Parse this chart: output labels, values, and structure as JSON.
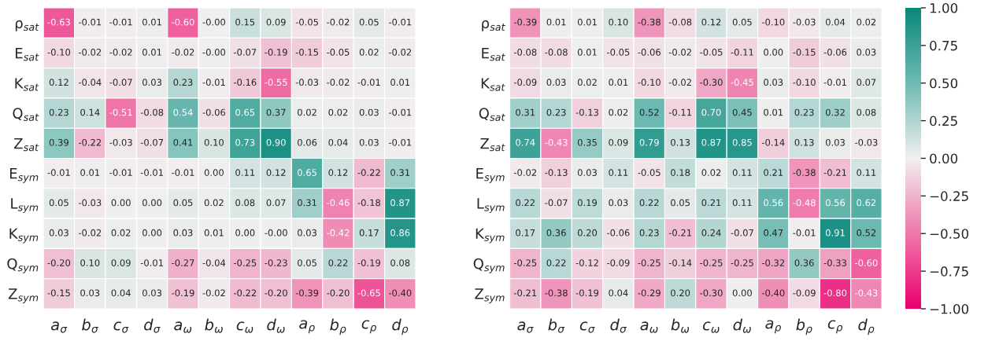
{
  "chart_data": [
    {
      "type": "heatmap",
      "categories": [
        "a$_{σ}$",
        "b$_{σ}$",
        "c$_{σ}$",
        "d$_{σ}$",
        "a$_{ω}$",
        "b$_{ω}$",
        "c$_{ω}$",
        "d$_{ω}$",
        "a$_{ρ}$",
        "b$_{ρ}$",
        "c$_{ρ}$",
        "d$_{ρ}$"
      ],
      "y_categories": [
        "ρ$_{sat}$",
        "E$_{sat}$",
        "K$_{sat}$",
        "Q$_{sat}$",
        "Z$_{sat}$",
        "E$_{sym}$",
        "L$_{sym}$",
        "K$_{sym}$",
        "Q$_{sym}$",
        "Z$_{sym}$"
      ],
      "cells": [
        [
          -0.63,
          -0.01,
          -0.01,
          0.01,
          -0.6,
          -0.0,
          0.15,
          0.09,
          -0.05,
          -0.02,
          0.05,
          -0.01
        ],
        [
          -0.1,
          -0.02,
          -0.02,
          0.01,
          -0.02,
          -0.0,
          -0.07,
          -0.19,
          -0.15,
          -0.05,
          0.02,
          -0.02
        ],
        [
          0.12,
          -0.04,
          -0.07,
          0.03,
          0.23,
          -0.01,
          -0.16,
          -0.55,
          -0.03,
          -0.02,
          -0.01,
          0.01
        ],
        [
          0.23,
          0.14,
          -0.51,
          -0.08,
          0.54,
          -0.06,
          0.65,
          0.37,
          0.02,
          0.02,
          0.03,
          -0.01
        ],
        [
          0.39,
          -0.22,
          -0.03,
          -0.07,
          0.41,
          0.1,
          0.73,
          0.9,
          0.06,
          0.04,
          0.03,
          -0.01
        ],
        [
          -0.01,
          0.01,
          -0.01,
          -0.01,
          -0.01,
          0.0,
          0.11,
          0.12,
          0.65,
          0.12,
          -0.22,
          0.31
        ],
        [
          0.05,
          -0.03,
          0.0,
          0.0,
          0.05,
          0.02,
          0.08,
          0.07,
          0.31,
          -0.46,
          -0.18,
          0.87
        ],
        [
          0.03,
          -0.02,
          0.02,
          0.0,
          0.03,
          0.01,
          0.0,
          -0.0,
          0.03,
          -0.42,
          0.17,
          0.86
        ],
        [
          -0.2,
          0.1,
          0.09,
          -0.01,
          -0.27,
          -0.04,
          -0.25,
          -0.23,
          0.05,
          0.22,
          -0.19,
          0.08
        ],
        [
          -0.15,
          0.03,
          0.04,
          0.03,
          -0.19,
          -0.02,
          -0.22,
          -0.2,
          -0.39,
          -0.2,
          -0.65,
          -0.4
        ]
      ],
      "cell_labels": [
        [
          "-0.63",
          "-0.01",
          "-0.01",
          "0.01",
          "-0.60",
          "-0.00",
          "0.15",
          "0.09",
          "-0.05",
          "-0.02",
          "0.05",
          "-0.01"
        ],
        [
          "-0.10",
          "-0.02",
          "-0.02",
          "0.01",
          "-0.02",
          "-0.00",
          "-0.07",
          "-0.19",
          "-0.15",
          "-0.05",
          "0.02",
          "-0.02"
        ],
        [
          "0.12",
          "-0.04",
          "-0.07",
          "0.03",
          "0.23",
          "-0.01",
          "-0.16",
          "-0.55",
          "-0.03",
          "-0.02",
          "-0.01",
          "0.01"
        ],
        [
          "0.23",
          "0.14",
          "-0.51",
          "-0.08",
          "0.54",
          "-0.06",
          "0.65",
          "0.37",
          "0.02",
          "0.02",
          "0.03",
          "-0.01"
        ],
        [
          "0.39",
          "-0.22",
          "-0.03",
          "-0.07",
          "0.41",
          "0.10",
          "0.73",
          "0.90",
          "0.06",
          "0.04",
          "0.03",
          "-0.01"
        ],
        [
          "-0.01",
          "0.01",
          "-0.01",
          "-0.01",
          "-0.01",
          "0.00",
          "0.11",
          "0.12",
          "0.65",
          "0.12",
          "-0.22",
          "0.31"
        ],
        [
          "0.05",
          "-0.03",
          "0.00",
          "0.00",
          "0.05",
          "0.02",
          "0.08",
          "0.07",
          "0.31",
          "-0.46",
          "-0.18",
          "0.87"
        ],
        [
          "0.03",
          "-0.02",
          "0.02",
          "0.00",
          "0.03",
          "0.01",
          "0.00",
          "-0.00",
          "0.03",
          "-0.42",
          "0.17",
          "0.86"
        ],
        [
          "-0.20",
          "0.10",
          "0.09",
          "-0.01",
          "-0.27",
          "-0.04",
          "-0.25",
          "-0.23",
          "0.05",
          "0.22",
          "-0.19",
          "0.08"
        ],
        [
          "-0.15",
          "0.03",
          "0.04",
          "0.03",
          "-0.19",
          "-0.02",
          "-0.22",
          "-0.20",
          "-0.39",
          "-0.20",
          "-0.65",
          "-0.40"
        ]
      ]
    },
    {
      "type": "heatmap",
      "categories": [
        "a$_{σ}$",
        "b$_{σ}$",
        "c$_{σ}$",
        "d$_{σ}$",
        "a$_{ω}$",
        "b$_{ω}$",
        "c$_{ω}$",
        "d$_{ω}$",
        "a$_{ρ}$",
        "b$_{ρ}$",
        "c$_{ρ}$",
        "d$_{ρ}$"
      ],
      "y_categories": [
        "ρ$_{sat}$",
        "E$_{sat}$",
        "K$_{sat}$",
        "Q$_{sat}$",
        "Z$_{sat}$",
        "E$_{sym}$",
        "L$_{sym}$",
        "K$_{sym}$",
        "Q$_{sym}$",
        "Z$_{sym}$"
      ],
      "cells": [
        [
          -0.39,
          0.01,
          0.01,
          0.1,
          -0.38,
          -0.08,
          0.12,
          0.05,
          -0.1,
          -0.03,
          0.04,
          0.02
        ],
        [
          -0.08,
          -0.08,
          0.01,
          -0.05,
          -0.06,
          -0.02,
          -0.05,
          -0.11,
          0.0,
          -0.15,
          -0.06,
          0.03
        ],
        [
          -0.09,
          0.03,
          0.02,
          0.01,
          -0.1,
          -0.02,
          -0.3,
          -0.45,
          0.03,
          -0.1,
          -0.01,
          0.07
        ],
        [
          0.31,
          0.23,
          -0.13,
          0.02,
          0.52,
          -0.11,
          0.7,
          0.45,
          0.01,
          0.23,
          0.32,
          0.08
        ],
        [
          0.74,
          -0.43,
          0.35,
          0.09,
          0.79,
          0.13,
          0.87,
          0.85,
          -0.14,
          0.13,
          0.03,
          -0.03
        ],
        [
          -0.02,
          -0.13,
          0.03,
          0.11,
          -0.05,
          0.18,
          0.02,
          0.11,
          0.21,
          -0.38,
          -0.21,
          0.11
        ],
        [
          0.22,
          -0.07,
          0.19,
          0.03,
          0.22,
          0.05,
          0.21,
          0.11,
          0.56,
          -0.48,
          0.56,
          0.62
        ],
        [
          0.17,
          0.36,
          0.2,
          -0.06,
          0.23,
          -0.21,
          0.24,
          -0.07,
          0.47,
          -0.01,
          0.91,
          0.52
        ],
        [
          -0.25,
          0.22,
          -0.12,
          -0.09,
          -0.25,
          -0.14,
          -0.25,
          -0.25,
          -0.32,
          0.36,
          -0.33,
          -0.6
        ],
        [
          -0.21,
          -0.38,
          -0.19,
          0.04,
          -0.29,
          0.2,
          -0.3,
          0.0,
          -0.4,
          -0.09,
          -0.8,
          -0.43
        ]
      ],
      "cell_labels": [
        [
          "-0.39",
          "0.01",
          "0.01",
          "0.10",
          "-0.38",
          "-0.08",
          "0.12",
          "0.05",
          "-0.10",
          "-0.03",
          "0.04",
          "0.02"
        ],
        [
          "-0.08",
          "-0.08",
          "0.01",
          "-0.05",
          "-0.06",
          "-0.02",
          "-0.05",
          "-0.11",
          "0.00",
          "-0.15",
          "-0.06",
          "0.03"
        ],
        [
          "-0.09",
          "0.03",
          "0.02",
          "0.01",
          "-0.10",
          "-0.02",
          "-0.30",
          "-0.45",
          "0.03",
          "-0.10",
          "-0.01",
          "0.07"
        ],
        [
          "0.31",
          "0.23",
          "-0.13",
          "0.02",
          "0.52",
          "-0.11",
          "0.70",
          "0.45",
          "0.01",
          "0.23",
          "0.32",
          "0.08"
        ],
        [
          "0.74",
          "-0.43",
          "0.35",
          "0.09",
          "0.79",
          "0.13",
          "0.87",
          "0.85",
          "-0.14",
          "0.13",
          "0.03",
          "-0.03"
        ],
        [
          "-0.02",
          "-0.13",
          "0.03",
          "0.11",
          "-0.05",
          "0.18",
          "0.02",
          "0.11",
          "0.21",
          "-0.38",
          "-0.21",
          "0.11"
        ],
        [
          "0.22",
          "-0.07",
          "0.19",
          "0.03",
          "0.22",
          "0.05",
          "0.21",
          "0.11",
          "0.56",
          "-0.48",
          "0.56",
          "0.62"
        ],
        [
          "0.17",
          "0.36",
          "0.20",
          "-0.06",
          "0.23",
          "-0.21",
          "0.24",
          "-0.07",
          "0.47",
          "-0.01",
          "0.91",
          "0.52"
        ],
        [
          "-0.25",
          "0.22",
          "-0.12",
          "-0.09",
          "-0.25",
          "-0.14",
          "-0.25",
          "-0.25",
          "-0.32",
          "0.36",
          "-0.33",
          "-0.60"
        ],
        [
          "-0.21",
          "-0.38",
          "-0.19",
          "0.04",
          "-0.29",
          "0.20",
          "-0.30",
          "0.00",
          "-0.40",
          "-0.09",
          "-0.80",
          "-0.43"
        ]
      ],
      "clim": [
        -1,
        1
      ],
      "cticks": [
        {
          "value": -1,
          "label": "−1.00"
        },
        {
          "value": -0.75,
          "label": "−0.75"
        },
        {
          "value": -0.5,
          "label": "−0.50"
        },
        {
          "value": -0.25,
          "label": "−0.25"
        },
        {
          "value": 0,
          "label": "0.00"
        },
        {
          "value": 0.25,
          "label": "0.25"
        },
        {
          "value": 0.5,
          "label": "0.50"
        },
        {
          "value": 0.75,
          "label": "0.75"
        },
        {
          "value": 1,
          "label": "1.00"
        }
      ]
    }
  ]
}
